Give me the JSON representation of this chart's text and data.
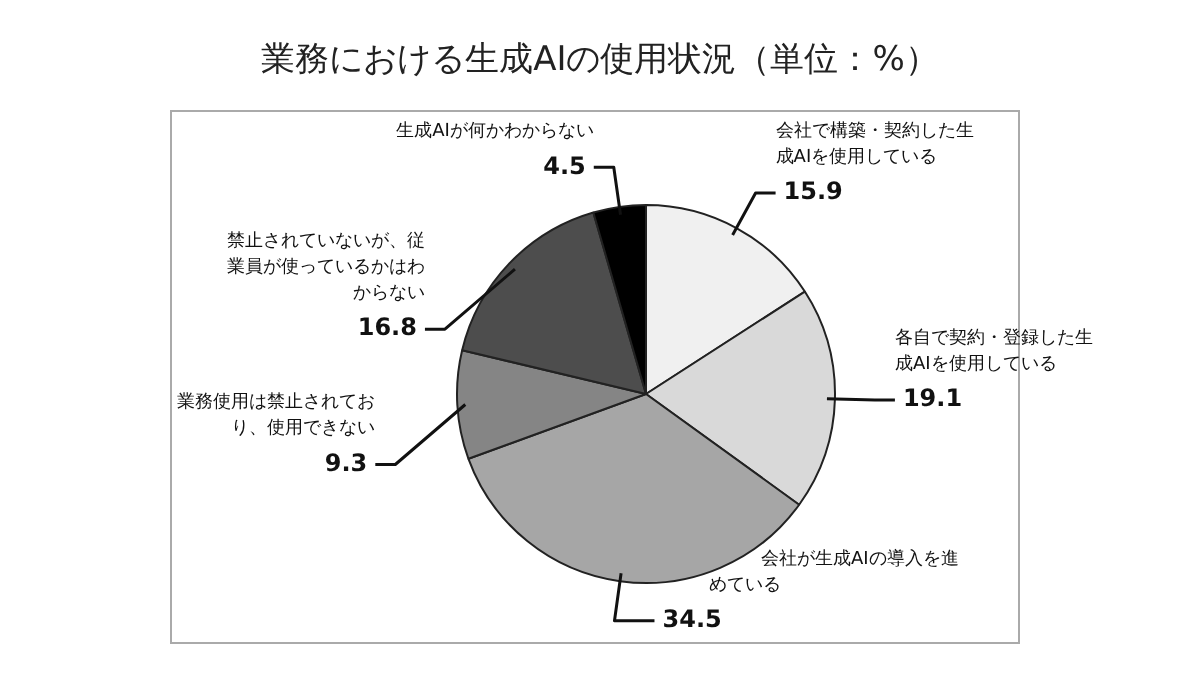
{
  "chart_data": {
    "type": "pie",
    "title": "業務における生成AIの使用状況（単位：%）",
    "categories": [
      "会社で構築・契約した生成AIを使用している",
      "各自で契約・登録した生成AIを使用している",
      "会社が生成AIの導入を進めている",
      "業務使用は禁止されており、使用できない",
      "禁止されていないが、従業員が使っているかはわからない",
      "生成AIが何かわからない"
    ],
    "values": [
      15.9,
      19.1,
      34.5,
      9.3,
      16.8,
      4.5
    ],
    "colors": [
      "#f0f0f0",
      "#d9d9d9",
      "#a6a6a6",
      "#858585",
      "#4d4d4d",
      "#000000"
    ],
    "data_labels": true,
    "legend": false
  }
}
